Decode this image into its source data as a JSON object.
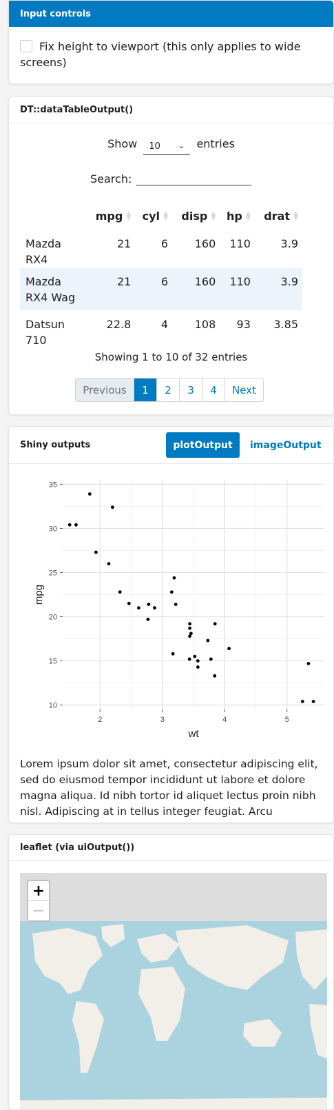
{
  "inputs": {
    "header": "Input controls",
    "checkbox_label": "Fix height to viewport (this only applies to wide screens)"
  },
  "dt": {
    "header": "DT::dataTableOutput()",
    "show_label": "Show",
    "entries_value": "10",
    "entries_label": "entries",
    "search_label": "Search:",
    "columns": [
      "mpg",
      "cyl",
      "disp",
      "hp",
      "drat"
    ],
    "rows": [
      {
        "name": "Mazda RX4",
        "mpg": "21",
        "cyl": "6",
        "disp": "160",
        "hp": "110",
        "drat": "3.9"
      },
      {
        "name": "Mazda RX4 Wag",
        "mpg": "21",
        "cyl": "6",
        "disp": "160",
        "hp": "110",
        "drat": "3.9"
      },
      {
        "name": "Datsun 710",
        "mpg": "22.8",
        "cyl": "4",
        "disp": "108",
        "hp": "93",
        "drat": "3.85"
      }
    ],
    "info": "Showing 1 to 10 of 32 entries",
    "pager": {
      "previous": "Previous",
      "pages": [
        "1",
        "2",
        "3",
        "4"
      ],
      "next": "Next",
      "active": "1"
    }
  },
  "outputs": {
    "header": "Shiny outputs",
    "tab_plot": "plotOutput",
    "tab_image": "imageOutput",
    "lorem": "Lorem ipsum dolor sit amet, consectetur adipiscing elit, sed do eiusmod tempor incididunt ut labore et dolore magna aliqua. Id nibh tortor id aliquet lectus proin nibh nisl. Adipiscing at in tellus integer feugiat. Arcu bibendum"
  },
  "chart_data": {
    "type": "scatter",
    "xlabel": "wt",
    "ylabel": "mpg",
    "xlim": [
      1.4,
      5.6
    ],
    "ylim": [
      9.5,
      35.5
    ],
    "xticks": [
      2,
      3,
      4,
      5
    ],
    "yticks": [
      10,
      15,
      20,
      25,
      30,
      35
    ],
    "grid": true,
    "points": [
      [
        2.62,
        21.0
      ],
      [
        2.875,
        21.0
      ],
      [
        2.32,
        22.8
      ],
      [
        3.215,
        21.4
      ],
      [
        3.44,
        18.7
      ],
      [
        3.46,
        18.1
      ],
      [
        3.57,
        14.3
      ],
      [
        3.19,
        24.4
      ],
      [
        3.15,
        22.8
      ],
      [
        3.44,
        19.2
      ],
      [
        3.44,
        17.8
      ],
      [
        4.07,
        16.4
      ],
      [
        3.73,
        17.3
      ],
      [
        3.78,
        15.2
      ],
      [
        5.25,
        10.4
      ],
      [
        5.424,
        10.4
      ],
      [
        5.345,
        14.7
      ],
      [
        2.2,
        32.4
      ],
      [
        1.615,
        30.4
      ],
      [
        1.835,
        33.9
      ],
      [
        2.465,
        21.5
      ],
      [
        3.52,
        15.5
      ],
      [
        3.435,
        15.2
      ],
      [
        3.84,
        13.3
      ],
      [
        3.845,
        19.2
      ],
      [
        1.935,
        27.3
      ],
      [
        2.14,
        26.0
      ],
      [
        1.513,
        30.4
      ],
      [
        3.17,
        15.8
      ],
      [
        2.77,
        19.7
      ],
      [
        3.57,
        15.0
      ],
      [
        2.78,
        21.4
      ]
    ]
  },
  "leaflet": {
    "header": "leaflet (via uiOutput())",
    "zoom_in": "+",
    "zoom_out": "−"
  }
}
